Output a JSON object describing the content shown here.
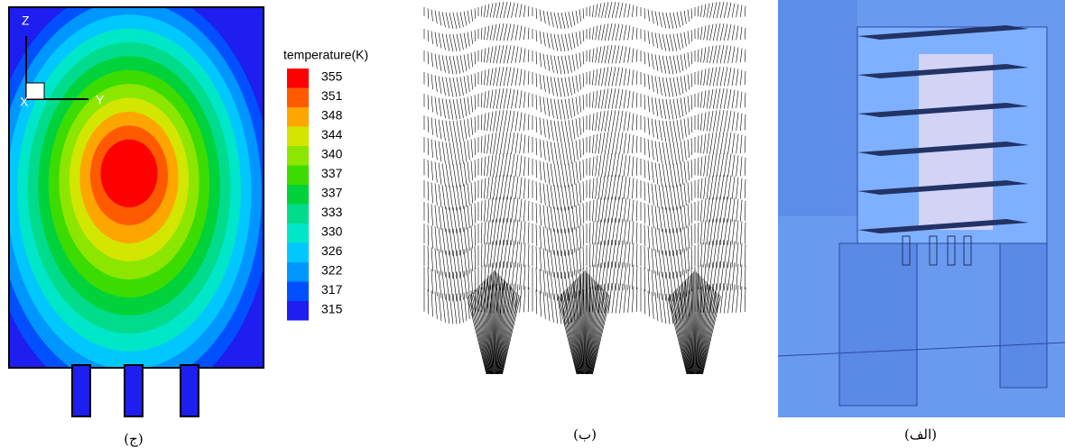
{
  "panels": {
    "contour": {
      "caption": "(ج)",
      "axes": {
        "z": "Z",
        "y": "Y",
        "x": "X"
      },
      "legend": {
        "title": "temperature(K)",
        "levels": [
          {
            "label": "355",
            "color": "#ff0000"
          },
          {
            "label": "351",
            "color": "#ff5a00"
          },
          {
            "label": "348",
            "color": "#ffa500"
          },
          {
            "label": "344",
            "color": "#d2e600"
          },
          {
            "label": "340",
            "color": "#8ce600"
          },
          {
            "label": "337",
            "color": "#3cdc00"
          },
          {
            "label": "337",
            "color": "#00d23c"
          },
          {
            "label": "333",
            "color": "#00dc8c"
          },
          {
            "label": "330",
            "color": "#00e6c8"
          },
          {
            "label": "326",
            "color": "#00c8ff"
          },
          {
            "label": "322",
            "color": "#0096ff"
          },
          {
            "label": "317",
            "color": "#0050ff"
          },
          {
            "label": "315",
            "color": "#1e1ef0"
          }
        ]
      }
    },
    "vectors": {
      "caption": "(ب)"
    },
    "model": {
      "caption": "(الف)"
    }
  }
}
